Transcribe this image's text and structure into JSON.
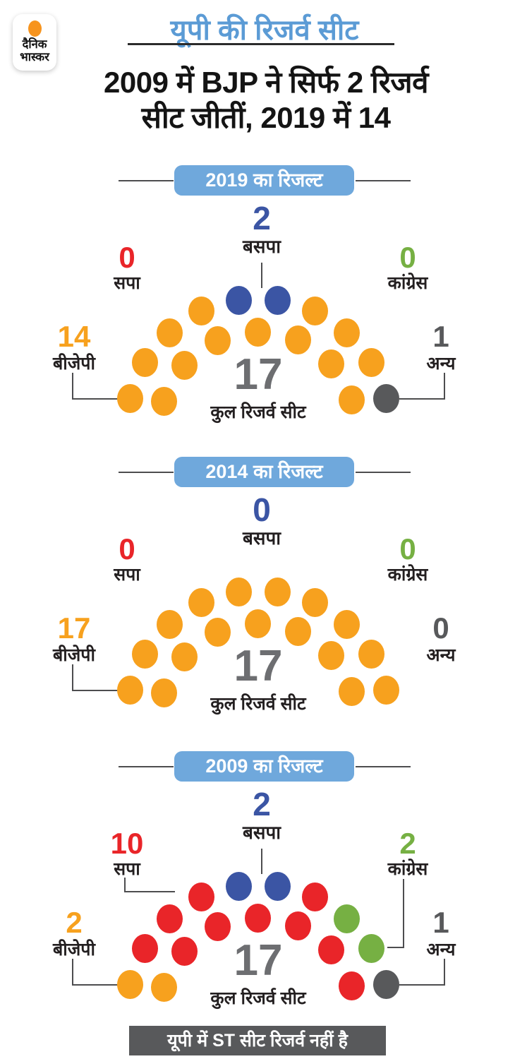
{
  "logo": {
    "line1": "दैनिक",
    "line2": "भास्कर"
  },
  "header": {
    "title": "यूपी की रिजर्व सीट",
    "headline_line1": "2009 में BJP ने सिर्फ 2 रिजर्व",
    "headline_line2": "सीट जीतीं, 2019 में 14"
  },
  "footer": {
    "note": "यूपी में ST सीट रिजर्व नहीं है"
  },
  "colors": {
    "bjp": "#F7A11E",
    "sp": "#E92529",
    "bsp": "#3B55A4",
    "congress": "#76B043",
    "other": "#58595B",
    "badge": "#6FA8DC",
    "title": "#5B9BD5",
    "total": "#6D6E71",
    "footer_bg": "#58595B",
    "connector": "#4D4D4F",
    "logo_dot": "#F7941E"
  },
  "chart_data": [
    {
      "type": "parliament",
      "title": "2019 का रिजल्ट",
      "total": 17,
      "total_label": "कुल रिजर्व सीट",
      "arcs": {
        "outer": 10,
        "inner": 7
      },
      "series": [
        {
          "key": "bsp",
          "name": "बसपा",
          "seats": 2,
          "position": "top",
          "connector": true
        },
        {
          "key": "sp",
          "name": "सपा",
          "seats": 0,
          "position": "left_upper",
          "connector": false
        },
        {
          "key": "congress",
          "name": "कांग्रेस",
          "seats": 0,
          "position": "right_upper",
          "connector": false
        },
        {
          "key": "bjp",
          "name": "बीजेपी",
          "seats": 14,
          "position": "left_lower",
          "connector": true
        },
        {
          "key": "other",
          "name": "अन्य",
          "seats": 1,
          "position": "right_lower",
          "connector": true
        }
      ],
      "seats_outer": [
        "bjp",
        "bjp",
        "bjp",
        "bjp",
        "bsp",
        "bsp",
        "bjp",
        "bjp",
        "bjp",
        "other"
      ],
      "seats_inner": [
        "bjp",
        "bjp",
        "bjp",
        "bjp",
        "bjp",
        "bjp",
        "bjp"
      ]
    },
    {
      "type": "parliament",
      "title": "2014 का रिजल्ट",
      "total": 17,
      "total_label": "कुल रिजर्व सीट",
      "arcs": {
        "outer": 10,
        "inner": 7
      },
      "series": [
        {
          "key": "bsp",
          "name": "बसपा",
          "seats": 0,
          "position": "top",
          "connector": false
        },
        {
          "key": "sp",
          "name": "सपा",
          "seats": 0,
          "position": "left_upper",
          "connector": false
        },
        {
          "key": "congress",
          "name": "कांग्रेस",
          "seats": 0,
          "position": "right_upper",
          "connector": false
        },
        {
          "key": "bjp",
          "name": "बीजेपी",
          "seats": 17,
          "position": "left_lower",
          "connector": true
        },
        {
          "key": "other",
          "name": "अन्य",
          "seats": 0,
          "position": "right_lower",
          "connector": false
        }
      ],
      "seats_outer": [
        "bjp",
        "bjp",
        "bjp",
        "bjp",
        "bjp",
        "bjp",
        "bjp",
        "bjp",
        "bjp",
        "bjp"
      ],
      "seats_inner": [
        "bjp",
        "bjp",
        "bjp",
        "bjp",
        "bjp",
        "bjp",
        "bjp"
      ]
    },
    {
      "type": "parliament",
      "title": "2009 का रिजल्ट",
      "total": 17,
      "total_label": "कुल रिजर्व सीट",
      "arcs": {
        "outer": 10,
        "inner": 7
      },
      "series": [
        {
          "key": "bsp",
          "name": "बसपा",
          "seats": 2,
          "position": "top",
          "connector": true
        },
        {
          "key": "sp",
          "name": "सपा",
          "seats": 10,
          "position": "left_upper",
          "connector": true
        },
        {
          "key": "congress",
          "name": "कांग्रेस",
          "seats": 2,
          "position": "right_upper",
          "connector": true
        },
        {
          "key": "bjp",
          "name": "बीजेपी",
          "seats": 2,
          "position": "left_lower",
          "connector": true
        },
        {
          "key": "other",
          "name": "अन्य",
          "seats": 1,
          "position": "right_lower",
          "connector": true
        }
      ],
      "seats_outer": [
        "bjp",
        "sp",
        "sp",
        "sp",
        "bsp",
        "bsp",
        "sp",
        "congress",
        "congress",
        "other"
      ],
      "seats_inner": [
        "bjp",
        "sp",
        "sp",
        "sp",
        "sp",
        "sp",
        "sp"
      ]
    }
  ]
}
